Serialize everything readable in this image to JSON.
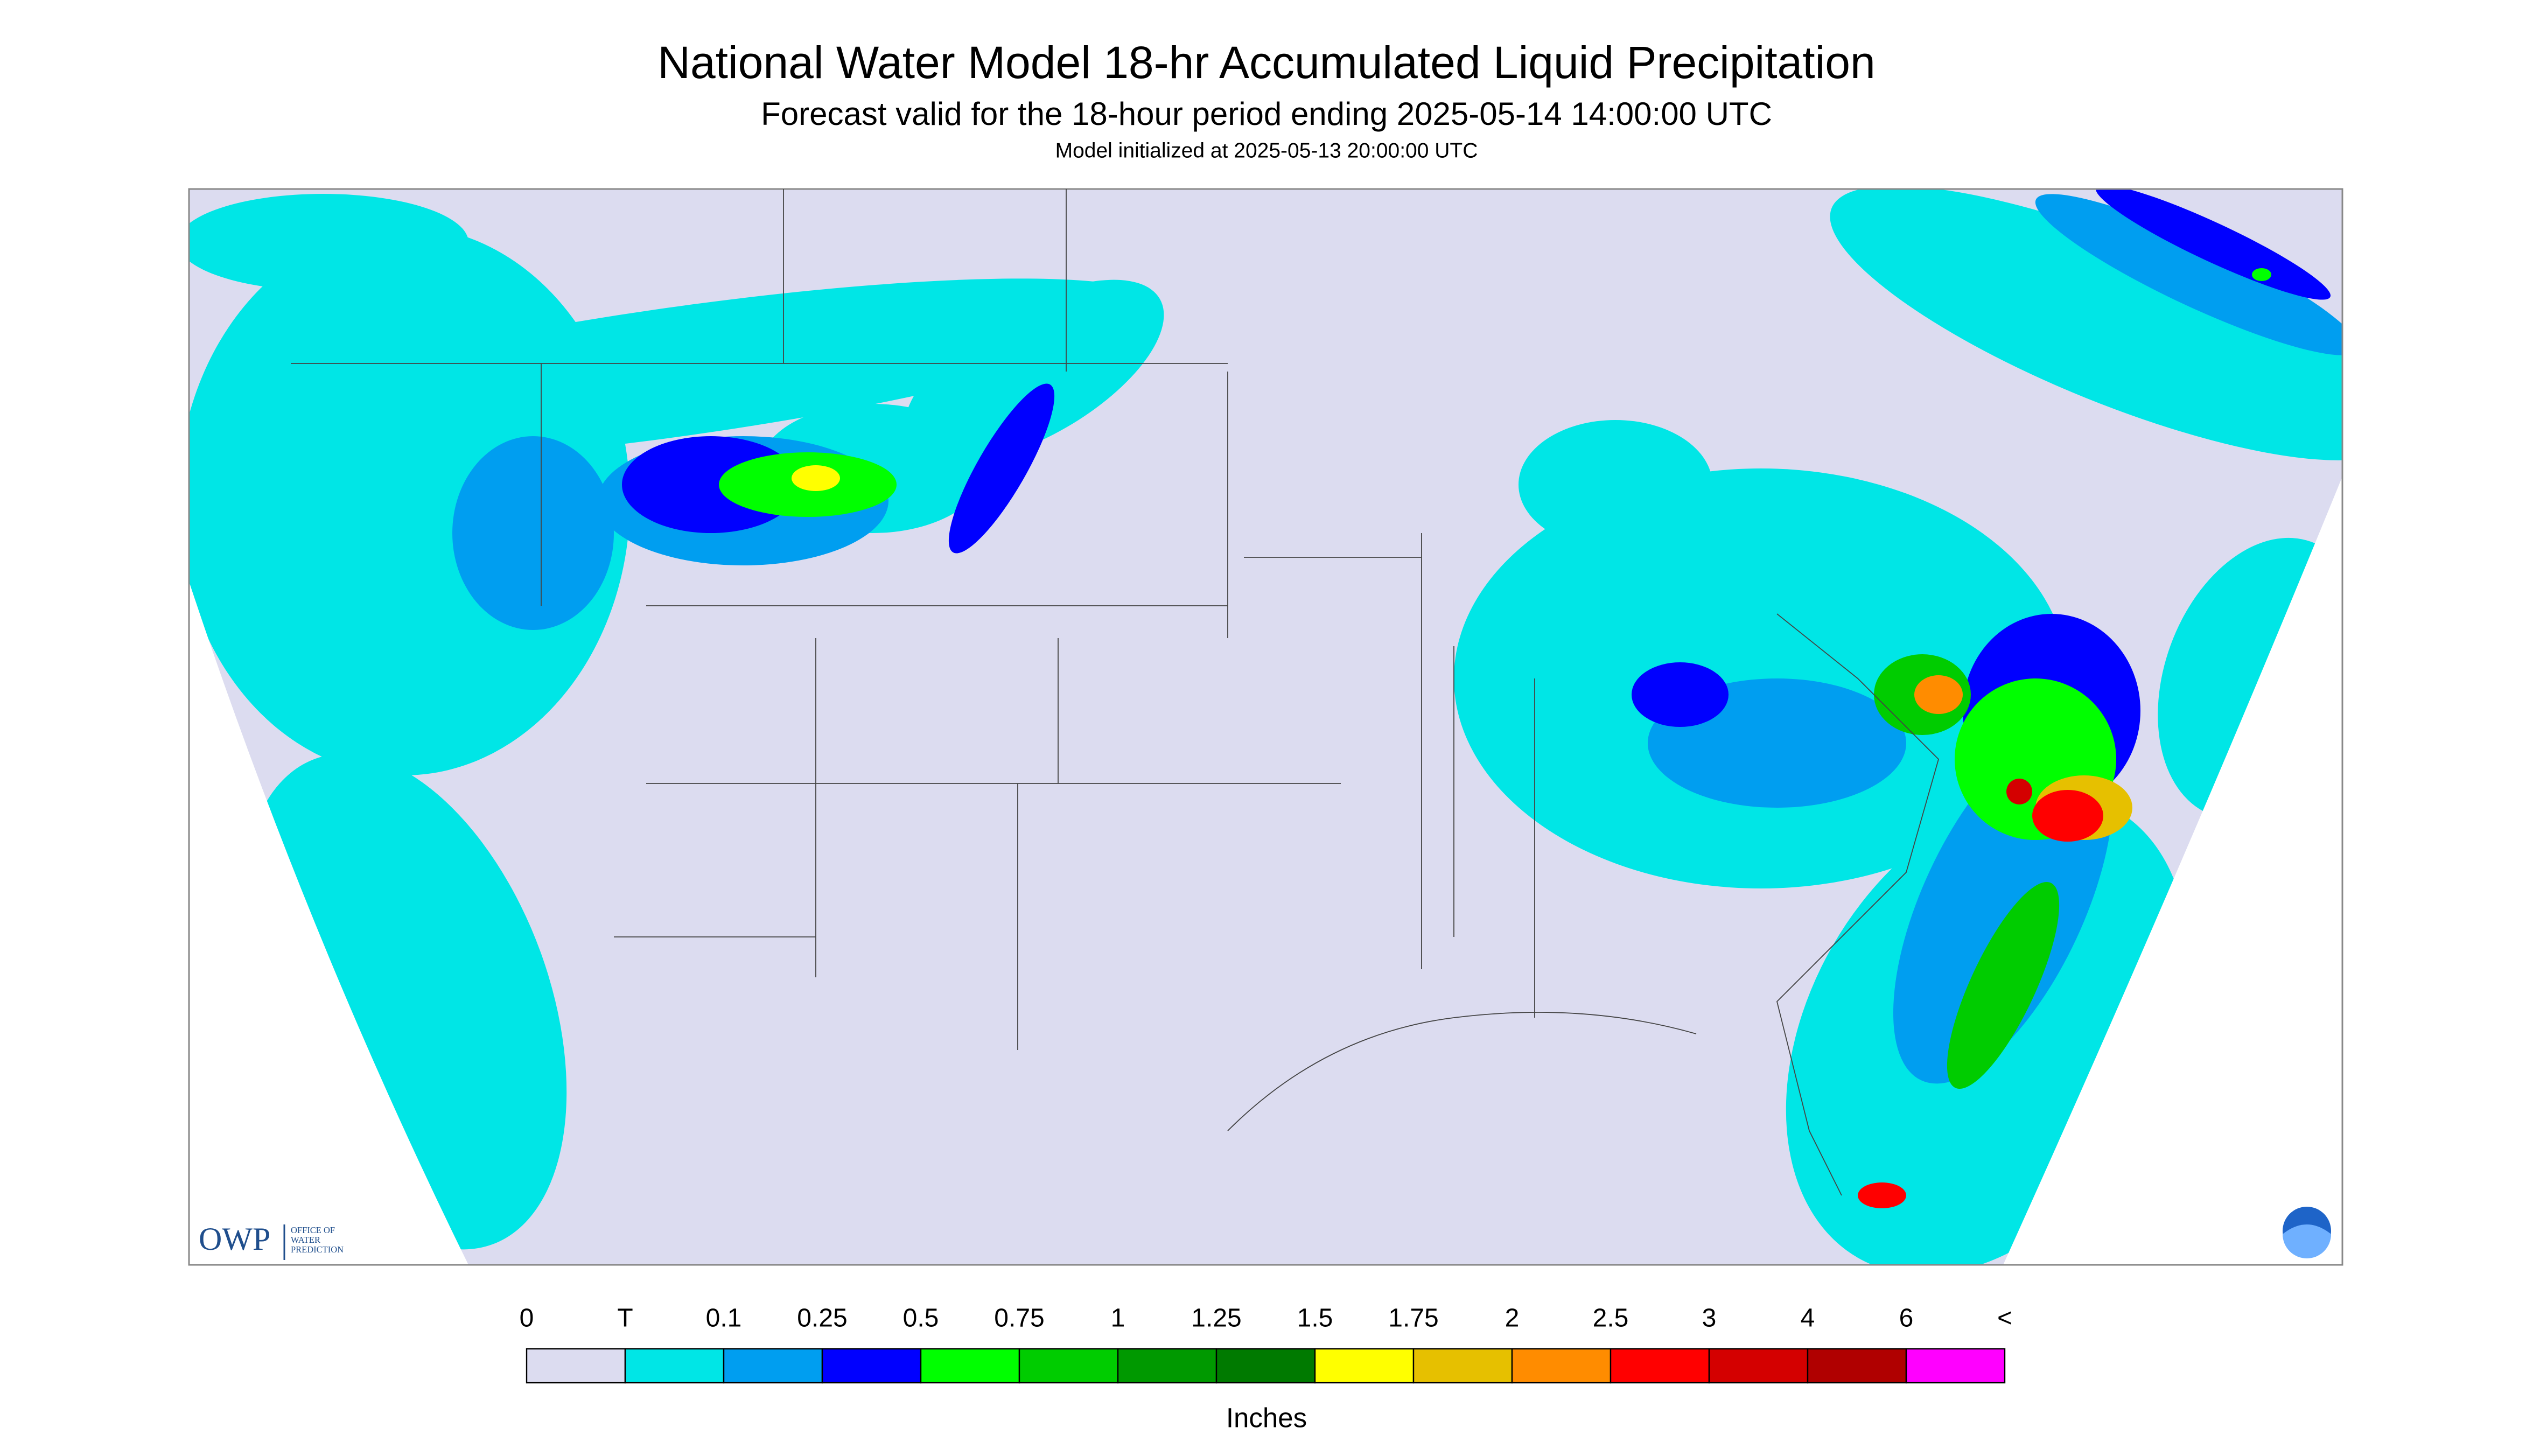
{
  "header": {
    "title": "National Water Model 18-hr Accumulated Liquid Precipitation",
    "subtitle": "Forecast valid for the 18-hour period ending 2025-05-14 14:00:00 UTC",
    "initialized": "Model initialized at 2025-05-13 20:00:00 UTC"
  },
  "legend": {
    "labels": [
      "0",
      "T",
      "0.1",
      "0.25",
      "0.5",
      "0.75",
      "1",
      "1.25",
      "1.5",
      "1.75",
      "2",
      "2.5",
      "3",
      "4",
      "6",
      "<"
    ],
    "colors": [
      "#dcdcf0",
      "#00e6e6",
      "#009ef0",
      "#0000ff",
      "#00ff00",
      "#00cc00",
      "#009900",
      "#007a00",
      "#ffff00",
      "#e6c000",
      "#ff8c00",
      "#ff0000",
      "#d40000",
      "#b00000",
      "#ff00ff",
      "#9955cc"
    ],
    "unit": "Inches"
  },
  "logo": {
    "abbr": "OWP",
    "lines": [
      "OFFICE OF",
      "WATER",
      "PREDICTION"
    ]
  }
}
